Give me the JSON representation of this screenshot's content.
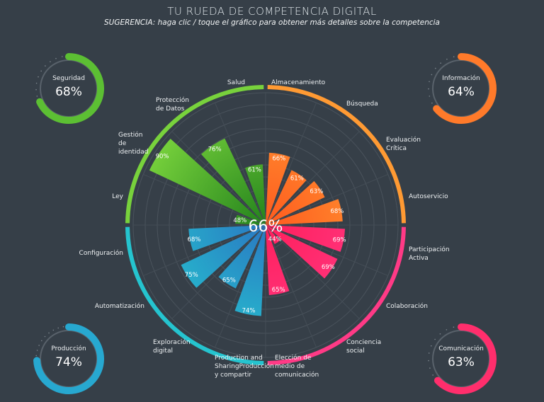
{
  "header": {
    "title": "TU RUEDA DE COMPETENCIA DIGITAL",
    "subtitle": "SUGERENCIA: haga clic / toque el gráfico para obtener más detalles sobre la competencia"
  },
  "gauges": [
    {
      "name": "Seguridad",
      "value": 68,
      "label": "68%",
      "color": "#5cbf33"
    },
    {
      "name": "Información",
      "value": 64,
      "label": "64%",
      "color": "#ff7a2a"
    },
    {
      "name": "Producción",
      "value": 74,
      "label": "74%",
      "color": "#27a8d0"
    },
    {
      "name": "Comunicación",
      "value": 63,
      "label": "63%",
      "color": "#ff2e6c"
    }
  ],
  "chart_data": {
    "type": "polar-bar",
    "center_label": "66%",
    "radial_range": [
      35,
      100
    ],
    "grid": true,
    "areas": [
      {
        "name": "Información",
        "color": "#ff9a33",
        "color_inner": "#ff5a1e",
        "categories": [
          "Almacenamiento",
          "Búsqueda",
          "Evaluación\nCrítica",
          "Autoservicio"
        ],
        "values": [
          66,
          61,
          63,
          68
        ]
      },
      {
        "name": "Comunicación",
        "color": "#ff3a86",
        "color_inner": "#ff1f5c",
        "categories": [
          "Participación\nActiva",
          "Colaboración",
          "Conciencia\nsocial",
          "Elección de\nmedio de\ncomunicación"
        ],
        "values": [
          69,
          69,
          44,
          65
        ]
      },
      {
        "name": "Producción",
        "color": "#25c4cf",
        "color_inner": "#2a78c2",
        "categories": [
          "Production and\nSharingProducción\ny compartir",
          "Exploración\ndigital",
          "Automatización",
          "Configuración"
        ],
        "values": [
          74,
          65,
          75,
          68
        ]
      },
      {
        "name": "Seguridad",
        "color": "#78d23c",
        "color_inner": "#23821c",
        "categories": [
          "Ley",
          "Gestión\nde\nidentidad",
          "Protección\nde Datos",
          "Salud"
        ],
        "values": [
          48,
          90,
          76,
          61
        ]
      }
    ]
  }
}
